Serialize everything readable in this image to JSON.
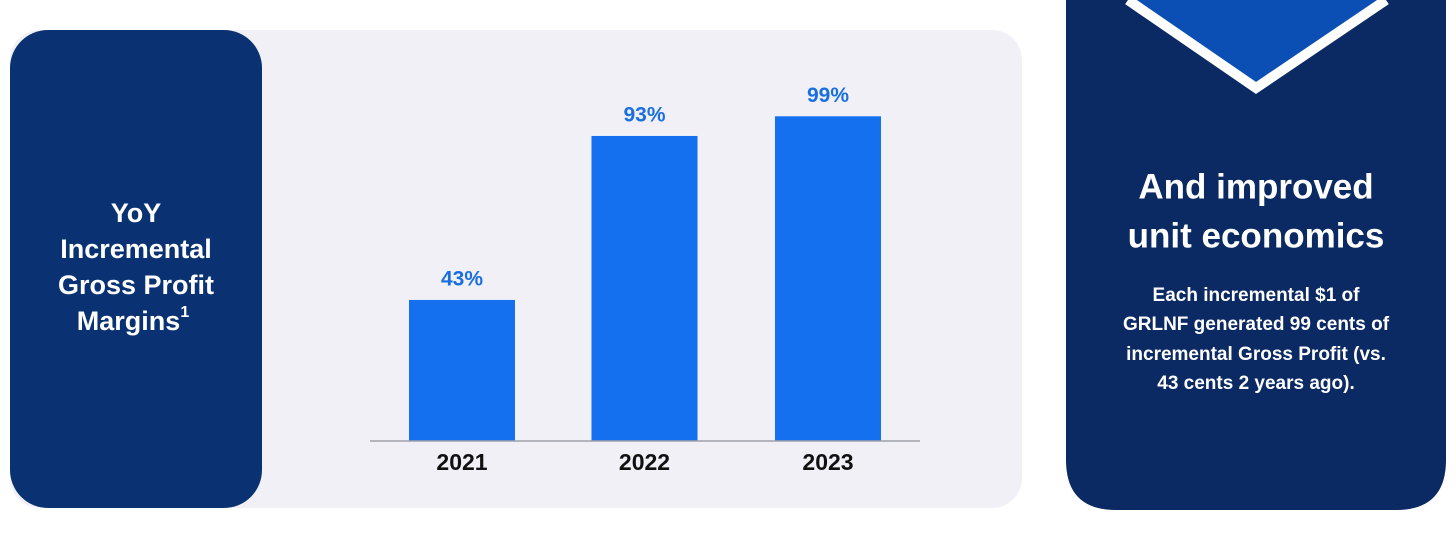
{
  "left_panel": {
    "title_lines": [
      "YoY",
      "Incremental",
      "Gross Profit",
      "Margins"
    ],
    "footnote_mark": "1"
  },
  "chart_data": {
    "type": "bar",
    "categories": [
      "2021",
      "2022",
      "2023"
    ],
    "values": [
      43,
      93,
      99
    ],
    "value_labels": [
      "43%",
      "93%",
      "99%"
    ],
    "color": "#1570ef"
  },
  "right_panel": {
    "heading_lines": [
      "And improved",
      "unit economics"
    ],
    "body_lines": [
      "Each incremental $1 of",
      "GRLNF generated 99 cents of",
      "incremental Gross Profit (vs.",
      "43 cents 2 years ago)."
    ]
  }
}
